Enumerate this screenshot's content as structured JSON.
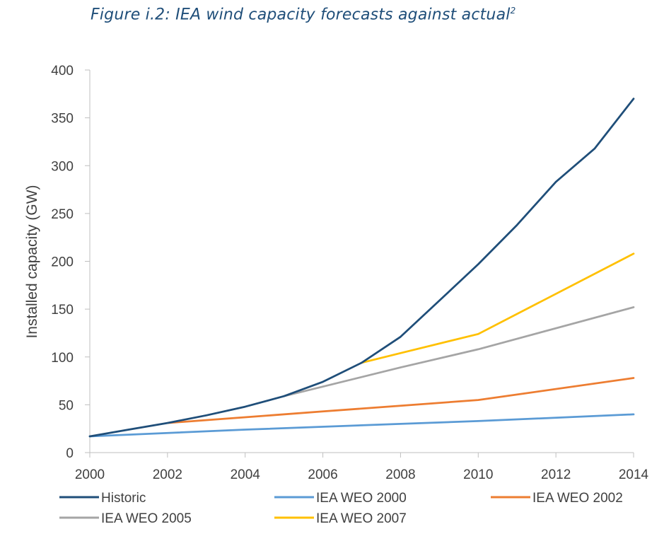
{
  "figure": {
    "title": "Figure i.2: IEA wind capacity forecasts against actual",
    "footnote_marker": "2"
  },
  "chart_data": {
    "type": "line",
    "title": "Figure i.2: IEA wind capacity forecasts against actual",
    "xlabel": "",
    "ylabel": "Installed capacity (GW)",
    "xlim": [
      2000,
      2014
    ],
    "ylim": [
      0,
      400
    ],
    "x_ticks": [
      2000,
      2002,
      2004,
      2006,
      2008,
      2010,
      2012,
      2014
    ],
    "y_ticks": [
      0,
      50,
      100,
      150,
      200,
      250,
      300,
      350,
      400
    ],
    "grid": false,
    "legend_position": "bottom",
    "series": [
      {
        "name": "Historic",
        "color": "#1f4e79",
        "points": [
          [
            2000,
            17
          ],
          [
            2001,
            24
          ],
          [
            2002,
            31
          ],
          [
            2003,
            39
          ],
          [
            2004,
            48
          ],
          [
            2005,
            59
          ],
          [
            2006,
            74
          ],
          [
            2007,
            94
          ],
          [
            2008,
            121
          ],
          [
            2009,
            159
          ],
          [
            2010,
            197
          ],
          [
            2011,
            238
          ],
          [
            2012,
            283
          ],
          [
            2013,
            318
          ],
          [
            2014,
            370
          ]
        ]
      },
      {
        "name": "IEA WEO 2000",
        "color": "#5b9bd5",
        "points": [
          [
            2000,
            17
          ],
          [
            2004,
            24
          ],
          [
            2008,
            30
          ],
          [
            2010,
            33
          ],
          [
            2014,
            40
          ]
        ]
      },
      {
        "name": "IEA WEO 2002",
        "color": "#ed7d31",
        "points": [
          [
            2002,
            31
          ],
          [
            2004,
            37
          ],
          [
            2006,
            43
          ],
          [
            2008,
            49
          ],
          [
            2010,
            55
          ],
          [
            2014,
            78
          ]
        ]
      },
      {
        "name": "IEA WEO 2005",
        "color": "#a5a5a5",
        "points": [
          [
            2005,
            59
          ],
          [
            2006,
            69
          ],
          [
            2008,
            89
          ],
          [
            2010,
            108
          ],
          [
            2014,
            152
          ]
        ]
      },
      {
        "name": "IEA WEO 2007",
        "color": "#ffc000",
        "points": [
          [
            2007,
            94
          ],
          [
            2008,
            104
          ],
          [
            2010,
            124
          ],
          [
            2014,
            208
          ]
        ]
      }
    ]
  }
}
